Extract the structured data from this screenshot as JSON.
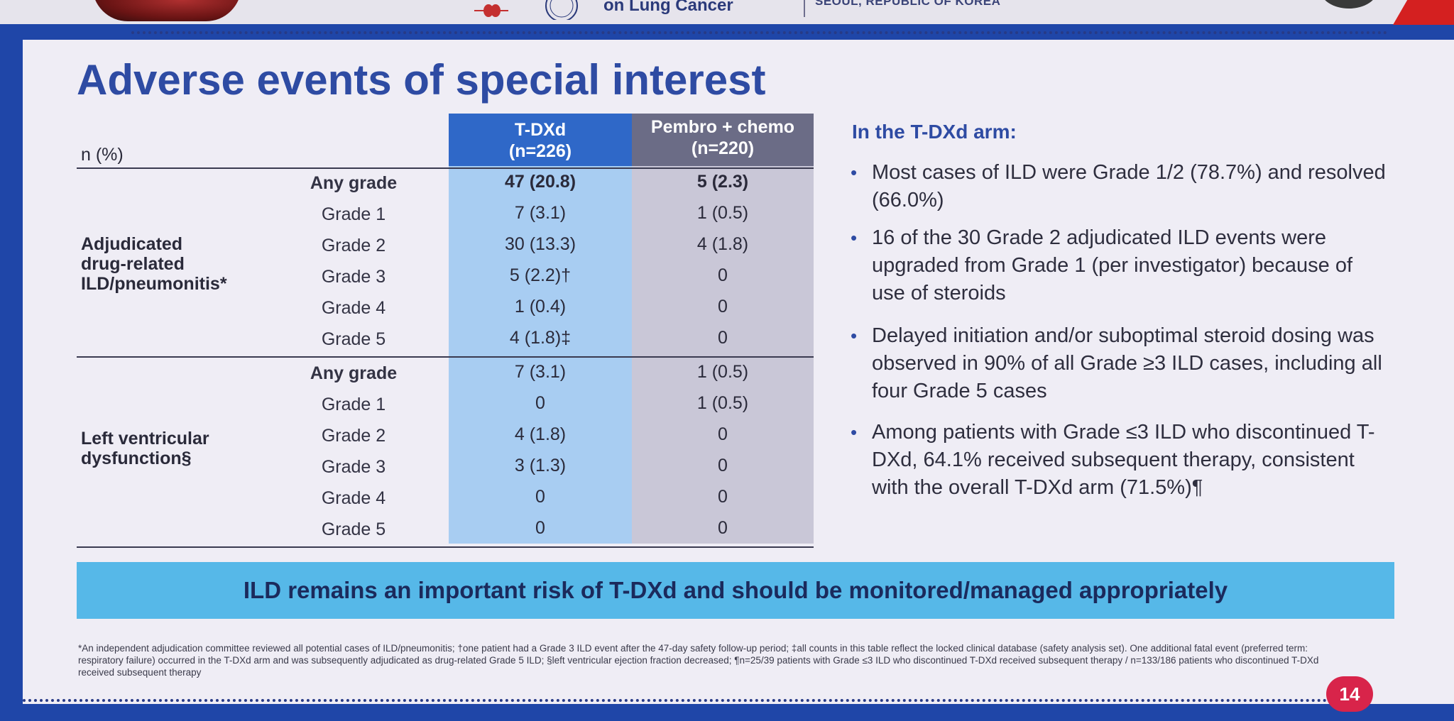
{
  "header": {
    "conference_title": "on Lung Cancer",
    "city": "SEOUL, REPUBLIC OF KOREA"
  },
  "slide": {
    "title": "Adverse events of special interest",
    "page_number": "14"
  },
  "table": {
    "n_label": "n (%)",
    "col1_name": "T-DXd",
    "col1_n": "(n=226)",
    "col2_name": "Pembro + chemo",
    "col2_n": "(n=220)",
    "groups": [
      {
        "label_lines": [
          "Adjudicated",
          "drug-related",
          "ILD/pneumonitis*"
        ],
        "rows": [
          {
            "grade": "Any grade",
            "tdxd": "47 (20.8)",
            "pembro": "5 (2.3)"
          },
          {
            "grade": "Grade 1",
            "tdxd": "7 (3.1)",
            "pembro": "1 (0.5)"
          },
          {
            "grade": "Grade 2",
            "tdxd": "30 (13.3)",
            "pembro": "4 (1.8)"
          },
          {
            "grade": "Grade 3",
            "tdxd": "5 (2.2)†",
            "pembro": "0"
          },
          {
            "grade": "Grade 4",
            "tdxd": "1 (0.4)",
            "pembro": "0"
          },
          {
            "grade": "Grade 5",
            "tdxd": "4 (1.8)‡",
            "pembro": "0"
          }
        ]
      },
      {
        "label_lines": [
          "Left ventricular",
          "dysfunction§"
        ],
        "rows": [
          {
            "grade": "Any grade",
            "tdxd": "7 (3.1)",
            "pembro": "1 (0.5)"
          },
          {
            "grade": "Grade 1",
            "tdxd": "0",
            "pembro": "1 (0.5)"
          },
          {
            "grade": "Grade 2",
            "tdxd": "4 (1.8)",
            "pembro": "0"
          },
          {
            "grade": "Grade 3",
            "tdxd": "3 (1.3)",
            "pembro": "0"
          },
          {
            "grade": "Grade 4",
            "tdxd": "0",
            "pembro": "0"
          },
          {
            "grade": "Grade 5",
            "tdxd": "0",
            "pembro": "0"
          }
        ]
      }
    ]
  },
  "right_panel": {
    "heading": "In the T-DXd arm:",
    "bullets": [
      "Most cases of ILD were Grade 1/2 (78.7%) and resolved (66.0%)",
      "16 of the 30 Grade 2 adjudicated ILD events were upgraded from Grade 1 (per investigator) because of use of steroids",
      "Delayed initiation and/or suboptimal steroid dosing was observed in 90% of all Grade ≥3 ILD cases, including all four Grade 5 cases",
      "Among patients with Grade ≤3 ILD who discontinued T-DXd, 64.1% received subsequent therapy, consistent with the overall T-DXd arm (71.5%)¶"
    ]
  },
  "banner": {
    "text": "ILD remains an important risk of T-DXd and should be monitored/managed appropriately"
  },
  "footnote": "*An independent adjudication committee reviewed all potential cases of ILD/pneumonitis; †one patient had a Grade 3 ILD event after the 47-day safety follow-up period; ‡all counts in this table reflect the locked clinical database (safety analysis set). One additional fatal event (preferred term: respiratory failure) occurred in the T-DXd arm and was subsequently adjudicated as drug-related Grade 5 ILD; §left ventricular ejection fraction decreased; ¶n=25/39 patients with Grade ≤3 ILD who discontinued T-DXd received subsequent therapy / n=133/186 patients who discontinued T-DXd received subsequent therapy",
  "colors": {
    "title_blue": "#2e4ba3",
    "tdxd_header": "#2f68c8",
    "tdxd_column": "#a8cdf2",
    "pembro_header": "#6b6c86",
    "pembro_column": "#c9c7d7",
    "banner": "#56b8e8",
    "badge": "#d8244a"
  }
}
